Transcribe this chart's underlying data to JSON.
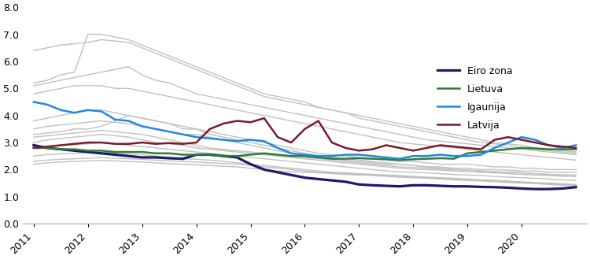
{
  "x_quarterly": [
    2011.0,
    2011.25,
    2011.5,
    2011.75,
    2012.0,
    2012.25,
    2012.5,
    2012.75,
    2013.0,
    2013.25,
    2013.5,
    2013.75,
    2014.0,
    2014.25,
    2014.5,
    2014.75,
    2015.0,
    2015.25,
    2015.5,
    2015.75,
    2016.0,
    2016.25,
    2016.5,
    2016.75,
    2017.0,
    2017.25,
    2017.5,
    2017.75,
    2018.0,
    2018.25,
    2018.5,
    2018.75,
    2019.0,
    2019.25,
    2019.5,
    2019.75,
    2020.0,
    2020.25,
    2020.5,
    2020.75,
    2021.0
  ],
  "eiro_zona": [
    2.9,
    2.8,
    2.75,
    2.7,
    2.65,
    2.6,
    2.55,
    2.5,
    2.45,
    2.45,
    2.42,
    2.4,
    2.55,
    2.55,
    2.5,
    2.45,
    2.2,
    2.0,
    1.9,
    1.8,
    1.7,
    1.65,
    1.6,
    1.55,
    1.45,
    1.42,
    1.4,
    1.38,
    1.42,
    1.42,
    1.4,
    1.38,
    1.38,
    1.36,
    1.35,
    1.33,
    1.3,
    1.28,
    1.28,
    1.3,
    1.35
  ],
  "lietuva": [
    2.8,
    2.8,
    2.75,
    2.75,
    2.7,
    2.7,
    2.65,
    2.65,
    2.65,
    2.6,
    2.6,
    2.55,
    2.55,
    2.55,
    2.5,
    2.5,
    2.55,
    2.6,
    2.55,
    2.5,
    2.5,
    2.45,
    2.4,
    2.4,
    2.42,
    2.4,
    2.38,
    2.35,
    2.38,
    2.4,
    2.42,
    2.4,
    2.6,
    2.65,
    2.7,
    2.75,
    2.8,
    2.78,
    2.75,
    2.75,
    2.75
  ],
  "igaunija": [
    4.5,
    4.4,
    4.2,
    4.1,
    4.2,
    4.15,
    3.85,
    3.8,
    3.6,
    3.5,
    3.4,
    3.3,
    3.2,
    3.15,
    3.1,
    3.05,
    3.1,
    3.05,
    2.8,
    2.6,
    2.55,
    2.5,
    2.5,
    2.55,
    2.55,
    2.5,
    2.45,
    2.4,
    2.5,
    2.5,
    2.55,
    2.5,
    2.5,
    2.55,
    2.8,
    3.0,
    3.2,
    3.1,
    2.9,
    2.8,
    2.9
  ],
  "latvija": [
    2.8,
    2.85,
    2.9,
    2.95,
    3.0,
    3.0,
    2.95,
    2.95,
    3.0,
    2.95,
    2.98,
    2.95,
    3.0,
    3.5,
    3.7,
    3.8,
    3.75,
    3.9,
    3.2,
    3.0,
    3.5,
    3.8,
    3.0,
    2.8,
    2.7,
    2.75,
    2.9,
    2.8,
    2.7,
    2.8,
    2.9,
    2.85,
    2.8,
    2.75,
    3.1,
    3.2,
    3.1,
    3.0,
    2.9,
    2.85,
    2.8
  ],
  "grey_lines": [
    [
      6.4,
      6.5,
      6.6,
      6.65,
      6.7,
      6.8,
      6.75,
      6.7,
      6.5,
      6.3,
      6.1,
      5.9,
      5.7,
      5.5,
      5.3,
      5.1,
      4.9,
      4.7,
      4.6,
      4.5,
      4.4,
      4.3,
      4.2,
      4.1,
      4.0,
      3.9,
      3.8,
      3.7,
      3.6,
      3.5,
      3.4,
      3.3,
      3.2,
      3.1,
      3.0,
      2.95,
      2.9,
      2.8,
      2.75,
      2.7,
      2.65
    ],
    [
      5.2,
      5.3,
      5.5,
      5.6,
      7.0,
      7.0,
      6.9,
      6.8,
      6.6,
      6.4,
      6.2,
      6.0,
      5.8,
      5.6,
      5.4,
      5.2,
      5.0,
      4.8,
      4.7,
      4.6,
      4.5,
      4.3,
      4.2,
      4.1,
      3.9,
      3.8,
      3.7,
      3.6,
      3.5,
      3.4,
      3.3,
      3.2,
      3.1,
      3.0,
      2.95,
      2.9,
      2.8,
      2.75,
      2.7,
      2.65,
      2.6
    ],
    [
      5.1,
      5.2,
      5.3,
      5.4,
      5.5,
      5.6,
      5.7,
      5.8,
      5.5,
      5.3,
      5.2,
      5.0,
      4.8,
      4.7,
      4.6,
      4.5,
      4.4,
      4.3,
      4.2,
      4.1,
      4.0,
      3.9,
      3.8,
      3.7,
      3.6,
      3.5,
      3.4,
      3.3,
      3.2,
      3.1,
      3.05,
      3.0,
      2.95,
      2.9,
      2.85,
      2.8,
      2.75,
      2.7,
      2.65,
      2.6,
      2.55
    ],
    [
      4.8,
      4.9,
      5.0,
      5.1,
      5.1,
      5.1,
      5.0,
      5.0,
      4.9,
      4.8,
      4.7,
      4.6,
      4.5,
      4.4,
      4.3,
      4.2,
      4.1,
      4.0,
      3.9,
      3.8,
      3.7,
      3.6,
      3.5,
      3.4,
      3.3,
      3.2,
      3.1,
      3.0,
      2.95,
      2.9,
      2.85,
      2.8,
      2.75,
      2.7,
      2.65,
      2.6,
      2.55,
      2.5,
      2.45,
      2.4,
      2.35
    ],
    [
      3.8,
      3.9,
      4.0,
      4.1,
      4.2,
      4.2,
      4.1,
      4.0,
      3.9,
      3.8,
      3.7,
      3.6,
      3.5,
      3.4,
      3.3,
      3.2,
      3.1,
      3.0,
      2.9,
      2.8,
      2.7,
      2.6,
      2.55,
      2.5,
      2.45,
      2.4,
      2.35,
      2.3,
      2.3,
      2.25,
      2.2,
      2.2,
      2.2,
      2.15,
      2.1,
      2.1,
      2.05,
      2.05,
      2.0,
      2.0,
      2.0
    ],
    [
      3.5,
      3.6,
      3.65,
      3.7,
      3.75,
      3.8,
      3.75,
      3.7,
      3.6,
      3.5,
      3.4,
      3.3,
      3.3,
      3.2,
      3.1,
      3.0,
      2.9,
      2.8,
      2.7,
      2.6,
      2.5,
      2.45,
      2.4,
      2.35,
      2.3,
      2.25,
      2.2,
      2.2,
      2.15,
      2.1,
      2.1,
      2.05,
      2.05,
      2.0,
      2.0,
      1.98,
      1.95,
      1.95,
      1.9,
      1.9,
      1.9
    ],
    [
      3.2,
      3.25,
      3.3,
      3.35,
      3.4,
      3.45,
      3.4,
      3.35,
      3.3,
      3.2,
      3.1,
      3.0,
      2.9,
      2.8,
      2.75,
      2.7,
      2.65,
      2.6,
      2.55,
      2.5,
      2.45,
      2.4,
      2.35,
      2.3,
      2.25,
      2.2,
      2.15,
      2.1,
      2.08,
      2.05,
      2.02,
      2.0,
      1.98,
      1.95,
      1.92,
      1.9,
      1.88,
      1.85,
      1.82,
      1.8,
      1.8
    ],
    [
      3.0,
      3.1,
      3.15,
      3.2,
      3.25,
      3.3,
      3.25,
      3.2,
      3.1,
      3.0,
      2.95,
      2.9,
      2.8,
      2.75,
      2.7,
      2.65,
      2.6,
      2.55,
      2.5,
      2.45,
      2.4,
      2.35,
      2.3,
      2.25,
      2.2,
      2.15,
      2.1,
      2.05,
      2.02,
      2.0,
      1.98,
      1.95,
      1.92,
      1.9,
      1.88,
      1.85,
      1.82,
      1.8,
      1.78,
      1.75,
      1.75
    ],
    [
      2.8,
      2.85,
      2.9,
      2.92,
      2.95,
      3.0,
      2.95,
      2.9,
      2.85,
      2.8,
      2.75,
      2.7,
      2.65,
      2.6,
      2.55,
      2.5,
      2.45,
      2.4,
      2.35,
      2.3,
      2.25,
      2.2,
      2.15,
      2.1,
      2.05,
      2.0,
      1.95,
      1.92,
      1.9,
      1.88,
      1.85,
      1.82,
      1.8,
      1.78,
      1.75,
      1.72,
      1.7,
      1.68,
      1.65,
      1.62,
      1.6
    ],
    [
      2.5,
      2.55,
      2.58,
      2.6,
      2.62,
      2.65,
      2.6,
      2.58,
      2.55,
      2.5,
      2.45,
      2.4,
      2.38,
      2.35,
      2.3,
      2.25,
      2.2,
      2.15,
      2.1,
      2.05,
      2.0,
      1.95,
      1.9,
      1.88,
      1.85,
      1.82,
      1.8,
      1.78,
      1.75,
      1.72,
      1.7,
      1.68,
      1.65,
      1.62,
      1.6,
      1.58,
      1.55,
      1.52,
      1.5,
      1.48,
      1.45
    ],
    [
      2.3,
      2.35,
      2.38,
      2.4,
      2.42,
      2.44,
      2.42,
      2.4,
      2.38,
      2.35,
      2.32,
      2.3,
      2.28,
      2.25,
      2.22,
      2.2,
      2.15,
      2.1,
      2.05,
      2.0,
      1.95,
      1.9,
      1.88,
      1.85,
      1.82,
      1.8,
      1.78,
      1.75,
      1.72,
      1.7,
      1.68,
      1.65,
      1.62,
      1.6,
      1.58,
      1.55,
      1.52,
      1.5,
      1.48,
      1.45,
      1.42
    ],
    [
      2.2,
      2.25,
      2.28,
      2.3,
      2.32,
      2.34,
      2.32,
      2.3,
      2.28,
      2.25,
      2.22,
      2.2,
      2.18,
      2.15,
      2.12,
      2.1,
      2.05,
      2.0,
      1.95,
      1.92,
      1.9,
      1.88,
      1.85,
      1.82,
      1.8,
      1.78,
      1.75,
      1.72,
      1.7,
      1.68,
      1.65,
      1.62,
      1.6,
      1.58,
      1.55,
      1.52,
      1.5,
      1.48,
      1.45,
      1.42,
      1.4
    ],
    [
      3.3,
      3.35,
      3.4,
      3.5,
      3.5,
      3.6,
      3.8,
      4.0,
      3.9,
      3.8,
      3.7,
      3.5,
      3.5,
      3.3,
      3.2,
      3.1,
      3.0,
      2.9,
      2.8,
      2.7,
      2.6,
      2.5,
      2.45,
      2.4,
      2.35,
      2.3,
      2.25,
      2.2,
      2.15,
      2.1,
      2.05,
      2.0,
      1.98,
      1.95,
      1.92,
      1.9,
      1.88,
      1.85,
      1.82,
      1.8,
      1.78
    ]
  ],
  "eiro_color": "#1a1a6e",
  "lietuva_color": "#2e7d32",
  "igaunija_color": "#1e88e5",
  "latvija_color": "#7b1a2a",
  "grey_color": "#c0c0c0",
  "ylim": [
    0.0,
    8.0
  ],
  "yticks": [
    0.0,
    1.0,
    2.0,
    3.0,
    4.0,
    5.0,
    6.0,
    7.0,
    8.0
  ],
  "xticks": [
    2011,
    2012,
    2013,
    2014,
    2015,
    2016,
    2017,
    2018,
    2019,
    2020
  ],
  "legend_labels": [
    "Eiro zona",
    "Lietuva",
    "Igaunija",
    "Latvija"
  ],
  "linewidth_main": 1.8,
  "linewidth_grey": 1.0,
  "figsize": [
    7.5,
    3.29
  ],
  "dpi": 100
}
